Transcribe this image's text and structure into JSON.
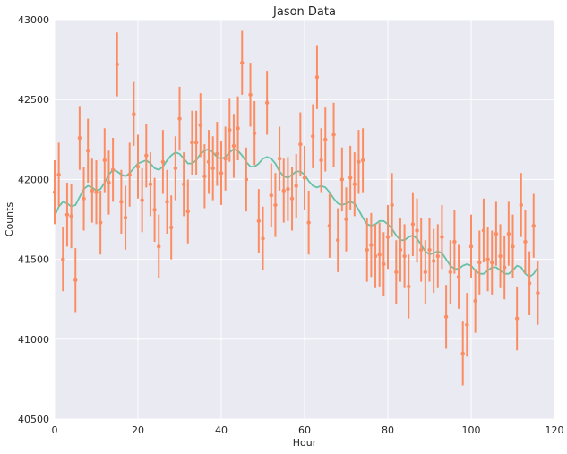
{
  "chart_data": {
    "type": "scatter",
    "title": "Jason Data",
    "xlabel": "Hour",
    "ylabel": "Counts",
    "xlim": [
      0,
      120
    ],
    "ylim": [
      40500,
      43000
    ],
    "xticks": [
      "0",
      "20",
      "40",
      "60",
      "80",
      "100",
      "120"
    ],
    "yticks": [
      "40500",
      "41000",
      "41500",
      "42000",
      "42500",
      "43000"
    ],
    "grid": true,
    "legend": "none",
    "colors": {
      "background": "#eaeaf2",
      "grid": "#ffffff",
      "points": "#fc8d62",
      "fit": "#66c2a5"
    },
    "series": [
      {
        "kind": "errorbar",
        "x": [
          0,
          1,
          2,
          3,
          4,
          5,
          6,
          7,
          8,
          9,
          10,
          11,
          12,
          13,
          14,
          15,
          16,
          17,
          18,
          19,
          20,
          21,
          22,
          23,
          24,
          25,
          26,
          27,
          28,
          29,
          30,
          31,
          32,
          33,
          34,
          35,
          36,
          37,
          38,
          39,
          40,
          41,
          42,
          43,
          44,
          45,
          46,
          47,
          48,
          49,
          50,
          51,
          52,
          53,
          54,
          55,
          56,
          57,
          58,
          59,
          60,
          61,
          62,
          63,
          64,
          65,
          66,
          67,
          68,
          69,
          70,
          71,
          72,
          73,
          74,
          75,
          76,
          77,
          78,
          79,
          80,
          81,
          82,
          83,
          84,
          85,
          86,
          87,
          88,
          89,
          90,
          91,
          92,
          93,
          94,
          95,
          96,
          97,
          98,
          99,
          100,
          101,
          102,
          103,
          104,
          105,
          106,
          107,
          108,
          109,
          110,
          111,
          112,
          113,
          114,
          115,
          116
        ],
        "y": [
          41920,
          42030,
          41500,
          41780,
          41770,
          41370,
          42260,
          41880,
          42180,
          41930,
          41920,
          41730,
          42120,
          41980,
          42060,
          42720,
          41860,
          41760,
          42030,
          42410,
          42080,
          41870,
          42150,
          41970,
          41810,
          41580,
          42110,
          41860,
          41700,
          42070,
          42380,
          41970,
          41800,
          42230,
          42230,
          42340,
          42020,
          42110,
          42070,
          42160,
          42040,
          42130,
          42310,
          42210,
          42320,
          42730,
          42000,
          42530,
          42290,
          41740,
          41630,
          42480,
          41900,
          41840,
          42130,
          41930,
          41940,
          41880,
          41960,
          42220,
          42010,
          41730,
          42270,
          42640,
          42120,
          42250,
          41710,
          42280,
          41620,
          42000,
          41750,
          42010,
          41970,
          42110,
          42120,
          41560,
          41590,
          41520,
          41530,
          41470,
          41640,
          41840,
          41420,
          41560,
          41520,
          41330,
          41720,
          41680,
          41560,
          41420,
          41560,
          41490,
          41520,
          41640,
          41140,
          41420,
          41610,
          41390,
          40910,
          41090,
          41580,
          41240,
          41480,
          41680,
          41500,
          41480,
          41660,
          41520,
          41450,
          41660,
          41580,
          41130,
          41840,
          41610,
          41350,
          41710,
          41290
        ],
        "err": [
          200,
          200,
          200,
          200,
          200,
          200,
          200,
          200,
          200,
          200,
          200,
          200,
          200,
          200,
          200,
          200,
          200,
          200,
          200,
          200,
          200,
          200,
          200,
          200,
          200,
          200,
          200,
          200,
          200,
          200,
          200,
          200,
          200,
          200,
          200,
          200,
          200,
          200,
          200,
          200,
          200,
          200,
          200,
          200,
          200,
          200,
          200,
          200,
          200,
          200,
          200,
          200,
          200,
          200,
          200,
          200,
          200,
          200,
          200,
          200,
          200,
          200,
          200,
          200,
          200,
          200,
          200,
          200,
          200,
          200,
          200,
          200,
          200,
          200,
          200,
          200,
          200,
          200,
          200,
          200,
          200,
          200,
          200,
          200,
          200,
          200,
          200,
          200,
          200,
          200,
          200,
          200,
          200,
          200,
          200,
          200,
          200,
          200,
          200,
          200,
          200,
          200,
          200,
          200,
          200,
          200,
          200,
          200,
          200,
          200,
          200,
          200,
          200,
          200,
          200,
          200,
          200
        ]
      },
      {
        "kind": "line",
        "x": [
          0,
          1,
          2,
          3,
          4,
          5,
          6,
          7,
          8,
          9,
          10,
          11,
          12,
          13,
          14,
          15,
          16,
          17,
          18,
          19,
          20,
          21,
          22,
          23,
          24,
          25,
          26,
          27,
          28,
          29,
          30,
          31,
          32,
          33,
          34,
          35,
          36,
          37,
          38,
          39,
          40,
          41,
          42,
          43,
          44,
          45,
          46,
          47,
          48,
          49,
          50,
          51,
          52,
          53,
          54,
          55,
          56,
          57,
          58,
          59,
          60,
          61,
          62,
          63,
          64,
          65,
          66,
          67,
          68,
          69,
          70,
          71,
          72,
          73,
          74,
          75,
          76,
          77,
          78,
          79,
          80,
          81,
          82,
          83,
          84,
          85,
          86,
          87,
          88,
          89,
          90,
          91,
          92,
          93,
          94,
          95,
          96,
          97,
          98,
          99,
          100,
          101,
          102,
          103,
          104,
          105,
          106,
          107,
          108,
          109,
          110,
          111,
          112,
          113,
          114,
          115,
          116
        ],
        "y": [
          41770,
          41830,
          41860,
          41850,
          41830,
          41840,
          41890,
          41940,
          41960,
          41950,
          41930,
          41940,
          41980,
          42030,
          42060,
          42050,
          42030,
          42020,
          42040,
          42070,
          42100,
          42110,
          42120,
          42100,
          42070,
          42060,
          42080,
          42120,
          42150,
          42170,
          42160,
          42130,
          42100,
          42100,
          42120,
          42160,
          42180,
          42190,
          42170,
          42140,
          42130,
          42140,
          42170,
          42190,
          42180,
          42150,
          42110,
          42080,
          42080,
          42100,
          42130,
          42140,
          42130,
          42100,
          42050,
          42020,
          42010,
          42030,
          42050,
          42050,
          42030,
          41990,
          41960,
          41950,
          41960,
          41950,
          41920,
          41880,
          41850,
          41840,
          41850,
          41860,
          41850,
          41810,
          41760,
          41720,
          41710,
          41720,
          41740,
          41740,
          41720,
          41690,
          41650,
          41620,
          41620,
          41640,
          41650,
          41630,
          41590,
          41550,
          41530,
          41540,
          41550,
          41540,
          41500,
          41460,
          41440,
          41440,
          41460,
          41470,
          41460,
          41430,
          41410,
          41410,
          41430,
          41450,
          41450,
          41430,
          41410,
          41410,
          41430,
          41460,
          41450,
          41410,
          41390,
          41410,
          41450
        ]
      }
    ]
  }
}
